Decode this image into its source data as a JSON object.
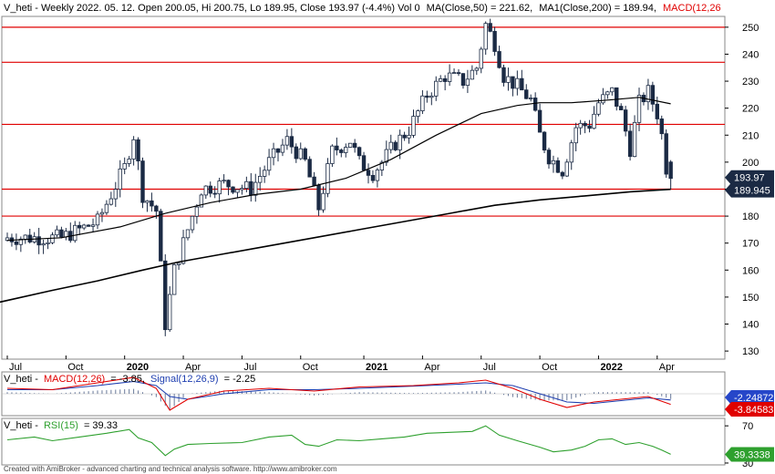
{
  "header": {
    "title": "V_heti - Weekly 2022. 05. 12. Open 200.05, Hi 200.75, Lo 189.95, Close 193.97 (-4.4%) Vol 0",
    "ma50_label": "MA(Close,50) = 221.62,",
    "ma200_label": "MA1(Close,200) = 189.94,",
    "macd_cut_label": "MACD(12,26"
  },
  "macd_header": {
    "prefix": "V_heti -",
    "macd_label": "MACD(12,26)",
    "macd_value": "= -3.85,",
    "signal_label": "Signal(12,26,9)",
    "signal_value": "= -2.25"
  },
  "rsi_header": {
    "prefix": "V_heti -",
    "rsi_label": "RSI(15)",
    "rsi_value": "= 39.33"
  },
  "footer": "Created with AmiBroker - advanced charting and technical analysis software. http://www.amibroker.com",
  "colors": {
    "candle_body": "#1b2a44",
    "ma_line": "#000000",
    "hline": "#e00000",
    "macd": "#e00000",
    "signal": "#1f3fb0",
    "rsi": "#2ea02e",
    "badge_dark": "#1b2a44",
    "badge_red": "#e00000",
    "badge_blue": "#2646c9",
    "badge_green": "#2ea02e"
  },
  "chart_data": [
    {
      "type": "candlestick",
      "panel": "price",
      "symbol": "V_heti",
      "timeframe": "Weekly",
      "y_ticks": [
        130,
        140,
        150,
        160,
        170,
        180,
        190,
        200,
        210,
        220,
        230,
        240,
        250
      ],
      "ylim": [
        127,
        254
      ],
      "x_tick_labels": [
        "Jul",
        "Oct",
        "2020",
        "Apr",
        "Jul",
        "Oct",
        "2021",
        "Apr",
        "Jul",
        "Oct",
        "2022",
        "Apr"
      ],
      "x_tick_weeks": [
        0,
        13,
        26,
        39,
        52,
        65,
        79,
        92,
        105,
        118,
        131,
        144
      ],
      "bold_ticks": [
        "2020",
        "2021",
        "2022"
      ],
      "ohlc": {
        "start": [
          172,
          173,
          168,
          171
        ],
        "waypoints": [
          [
            0,
            172
          ],
          [
            12,
            172
          ],
          [
            20,
            178
          ],
          [
            26,
            198
          ],
          [
            28,
            210
          ],
          [
            30,
            188
          ],
          [
            33,
            182
          ],
          [
            35,
            140
          ],
          [
            37,
            160
          ],
          [
            40,
            175
          ],
          [
            43,
            190
          ],
          [
            48,
            192
          ],
          [
            54,
            190
          ],
          [
            58,
            200
          ],
          [
            62,
            208
          ],
          [
            66,
            200
          ],
          [
            69,
            183
          ],
          [
            72,
            204
          ],
          [
            76,
            208
          ],
          [
            78,
            200
          ],
          [
            81,
            196
          ],
          [
            83,
            200
          ],
          [
            86,
            207
          ],
          [
            89,
            212
          ],
          [
            93,
            225
          ],
          [
            97,
            232
          ],
          [
            101,
            230
          ],
          [
            104,
            235
          ],
          [
            106,
            251
          ],
          [
            108,
            244
          ],
          [
            110,
            232
          ],
          [
            113,
            228
          ],
          [
            116,
            223
          ],
          [
            118,
            210
          ],
          [
            120,
            202
          ],
          [
            123,
            197
          ],
          [
            126,
            213
          ],
          [
            129,
            214
          ],
          [
            131,
            222
          ],
          [
            134,
            226
          ],
          [
            136,
            218
          ],
          [
            138,
            205
          ],
          [
            140,
            222
          ],
          [
            142,
            226
          ],
          [
            144,
            218
          ],
          [
            145,
            210
          ],
          [
            146,
            198
          ],
          [
            147,
            194
          ]
        ],
        "last": [
          200.05,
          200.75,
          189.95,
          193.97
        ]
      },
      "ma50": [
        [
          0,
          171
        ],
        [
          12,
          172
        ],
        [
          25,
          176
        ],
        [
          35,
          181
        ],
        [
          45,
          185
        ],
        [
          55,
          188
        ],
        [
          65,
          190
        ],
        [
          75,
          194
        ],
        [
          85,
          201
        ],
        [
          95,
          210
        ],
        [
          105,
          218
        ],
        [
          113,
          221
        ],
        [
          118,
          222
        ],
        [
          125,
          222
        ],
        [
          133,
          223
        ],
        [
          140,
          224
        ],
        [
          147,
          221.62
        ]
      ],
      "ma200": [
        [
          -2,
          148
        ],
        [
          10,
          152.5
        ],
        [
          20,
          156
        ],
        [
          30,
          160
        ],
        [
          38,
          163
        ],
        [
          48,
          166
        ],
        [
          58,
          169
        ],
        [
          68,
          172
        ],
        [
          78,
          175
        ],
        [
          88,
          178
        ],
        [
          98,
          181
        ],
        [
          108,
          184
        ],
        [
          118,
          186
        ],
        [
          128,
          187.5
        ],
        [
          138,
          189
        ],
        [
          147,
          189.94
        ]
      ],
      "horizontal_lines": [
        250,
        237,
        214,
        190,
        180
      ],
      "value_badges": [
        {
          "label": "193.97",
          "value": 193.97,
          "color": "#1b2a44"
        },
        {
          "label": "189.945",
          "value": 189.945,
          "color": "#1b2a44"
        }
      ]
    },
    {
      "type": "macd",
      "panel": "macd",
      "series": [
        {
          "name": "MACD(12,26)",
          "last": -3.85
        },
        {
          "name": "Signal(12,26,9)",
          "last": -2.25
        }
      ],
      "value_badges": [
        {
          "label": "-2.24872",
          "color": "#2646c9"
        },
        {
          "label": "-3.84583",
          "color": "#e00000"
        }
      ],
      "macd_points": [
        [
          0,
          2
        ],
        [
          10,
          1.5
        ],
        [
          20,
          4
        ],
        [
          28,
          6
        ],
        [
          33,
          2
        ],
        [
          36,
          -6
        ],
        [
          40,
          -2
        ],
        [
          48,
          1
        ],
        [
          58,
          2
        ],
        [
          68,
          1
        ],
        [
          78,
          2.5
        ],
        [
          90,
          3
        ],
        [
          100,
          4
        ],
        [
          106,
          5
        ],
        [
          112,
          2
        ],
        [
          118,
          -2
        ],
        [
          124,
          -5
        ],
        [
          130,
          -3
        ],
        [
          136,
          -2
        ],
        [
          142,
          -1
        ],
        [
          147,
          -3.85
        ]
      ],
      "signal_points": [
        [
          0,
          1.5
        ],
        [
          10,
          1.5
        ],
        [
          20,
          3
        ],
        [
          28,
          4.5
        ],
        [
          33,
          3
        ],
        [
          36,
          -1
        ],
        [
          40,
          -2
        ],
        [
          48,
          0
        ],
        [
          58,
          1.5
        ],
        [
          68,
          1.5
        ],
        [
          78,
          2
        ],
        [
          90,
          2.8
        ],
        [
          100,
          3.5
        ],
        [
          106,
          4
        ],
        [
          112,
          3
        ],
        [
          118,
          0
        ],
        [
          124,
          -3
        ],
        [
          130,
          -3.5
        ],
        [
          136,
          -2.5
        ],
        [
          142,
          -1.5
        ],
        [
          147,
          -2.25
        ]
      ],
      "ylim": [
        -8,
        8
      ]
    },
    {
      "type": "line",
      "panel": "rsi",
      "series": [
        {
          "name": "RSI(15)",
          "last": 39.33
        }
      ],
      "y_ticks": [
        30,
        70
      ],
      "ylim": [
        28,
        78
      ],
      "value_badges": [
        {
          "label": "39.3338",
          "color": "#2ea02e"
        }
      ],
      "rsi_points": [
        [
          0,
          55
        ],
        [
          6,
          58
        ],
        [
          10,
          54
        ],
        [
          16,
          58
        ],
        [
          22,
          62
        ],
        [
          27,
          66
        ],
        [
          29,
          57
        ],
        [
          32,
          52
        ],
        [
          35,
          38
        ],
        [
          37,
          45
        ],
        [
          40,
          50
        ],
        [
          45,
          51
        ],
        [
          52,
          52
        ],
        [
          58,
          58
        ],
        [
          63,
          60
        ],
        [
          66,
          50
        ],
        [
          69,
          48
        ],
        [
          73,
          55
        ],
        [
          78,
          54
        ],
        [
          83,
          56
        ],
        [
          88,
          58
        ],
        [
          93,
          62
        ],
        [
          98,
          63
        ],
        [
          103,
          64
        ],
        [
          106,
          70
        ],
        [
          109,
          60
        ],
        [
          113,
          54
        ],
        [
          118,
          47
        ],
        [
          121,
          42
        ],
        [
          125,
          44
        ],
        [
          128,
          48
        ],
        [
          131,
          55
        ],
        [
          134,
          56
        ],
        [
          137,
          50
        ],
        [
          140,
          52
        ],
        [
          143,
          48
        ],
        [
          145,
          44
        ],
        [
          147,
          39.33
        ]
      ]
    }
  ]
}
